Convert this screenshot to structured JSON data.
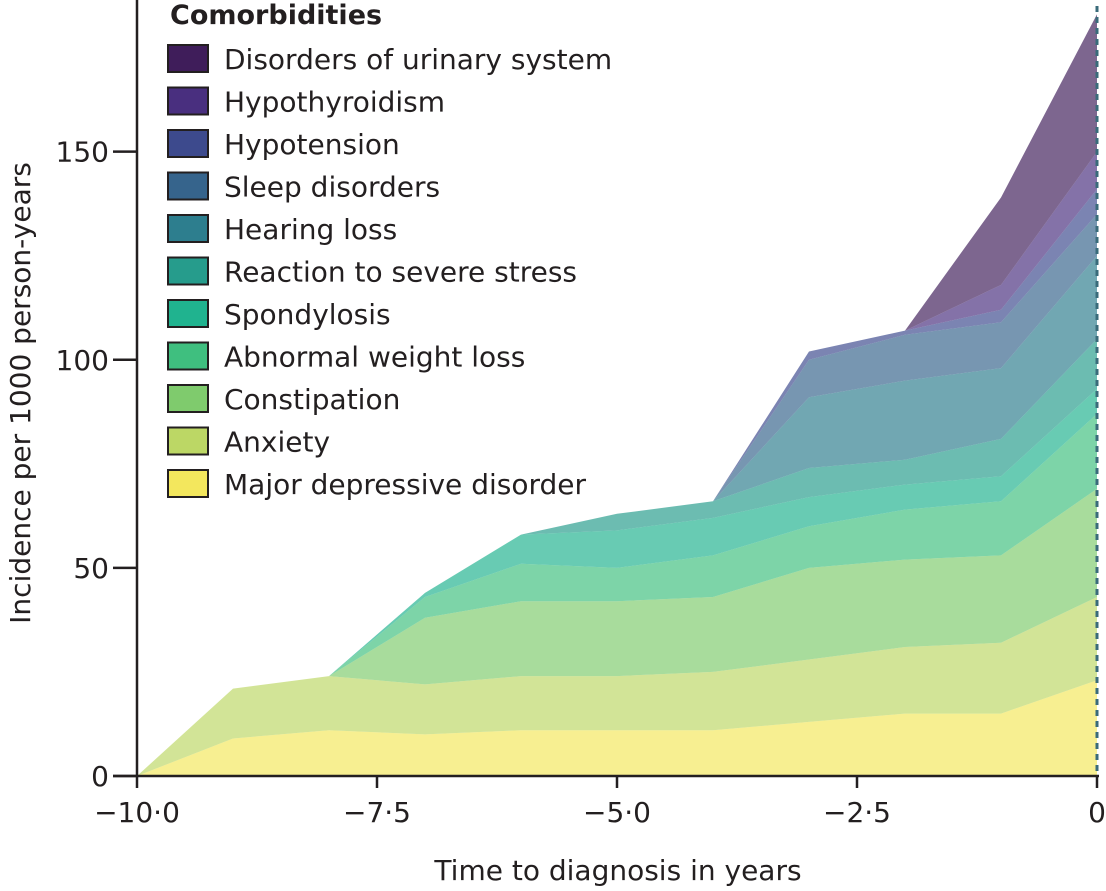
{
  "chart_data": {
    "type": "area",
    "stacked": true,
    "xlabel": "Time to diagnosis in years",
    "ylabel": "Incidence per 1000 person-years",
    "xlim": [
      -10,
      0
    ],
    "ylim": [
      0,
      185
    ],
    "x_ticks": [
      -10,
      -7.5,
      -5,
      -2.5,
      0
    ],
    "x_tick_labels": [
      "−10·0",
      "−7·5",
      "−5·0",
      "−2·5",
      "0"
    ],
    "y_ticks": [
      0,
      50,
      100,
      150
    ],
    "y_tick_labels": [
      "0",
      "50",
      "100",
      "150"
    ],
    "legend_title": "Comorbidities",
    "legend_position": "top-left",
    "reference_line": {
      "x": 0,
      "style": "dashed"
    },
    "x": [
      -10,
      -9,
      -8,
      -7,
      -6,
      -5,
      -4,
      -3,
      -2,
      -1,
      0
    ],
    "series": [
      {
        "name": "Major depressive disorder",
        "color": "#f3e75d",
        "values": [
          0,
          9,
          11,
          10,
          11,
          11,
          11,
          13,
          15,
          15,
          23
        ]
      },
      {
        "name": "Anxiety",
        "color": "#bcd765",
        "values": [
          0,
          12,
          13,
          12,
          13,
          13,
          14,
          15,
          16,
          17,
          20
        ]
      },
      {
        "name": "Constipation",
        "color": "#7fcb6d",
        "values": [
          0,
          0,
          0,
          16,
          18,
          18,
          18,
          22,
          21,
          21,
          26
        ]
      },
      {
        "name": "Abnormal weight loss",
        "color": "#3fbf7f",
        "values": [
          0,
          0,
          0,
          5,
          9,
          8,
          10,
          10,
          12,
          13,
          18
        ]
      },
      {
        "name": "Spondylosis",
        "color": "#20b38f",
        "values": [
          0,
          0,
          0,
          1,
          7,
          9,
          9,
          7,
          6,
          6,
          6
        ]
      },
      {
        "name": "Reaction to severe stress",
        "color": "#269c8c",
        "values": [
          0,
          0,
          0,
          0,
          0,
          4,
          4,
          7,
          6,
          9,
          12
        ]
      },
      {
        "name": "Hearing loss",
        "color": "#2d7e8e",
        "values": [
          0,
          0,
          0,
          0,
          0,
          0,
          0,
          17,
          19,
          17,
          20
        ]
      },
      {
        "name": "Sleep disorders",
        "color": "#36648c",
        "values": [
          0,
          0,
          0,
          0,
          0,
          0,
          0,
          9,
          11,
          11,
          10
        ]
      },
      {
        "name": "Hypotension",
        "color": "#3d4a8d",
        "values": [
          0,
          0,
          0,
          0,
          0,
          0,
          0,
          2,
          1,
          3,
          6
        ]
      },
      {
        "name": "Hypothyroidism",
        "color": "#492f7f",
        "values": [
          0,
          0,
          0,
          0,
          0,
          0,
          0,
          0,
          0,
          6,
          9
        ]
      },
      {
        "name": "Disorders of urinary system",
        "color": "#3f1d5a",
        "values": [
          0,
          0,
          0,
          0,
          0,
          0,
          0,
          0,
          0,
          21,
          33
        ]
      }
    ]
  }
}
